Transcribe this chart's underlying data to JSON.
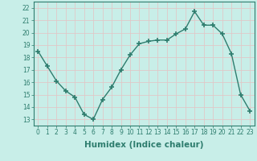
{
  "x": [
    0,
    1,
    2,
    3,
    4,
    5,
    6,
    7,
    8,
    9,
    10,
    11,
    12,
    13,
    14,
    15,
    16,
    17,
    18,
    19,
    20,
    21,
    22,
    23
  ],
  "y": [
    18.5,
    17.3,
    16.1,
    15.3,
    14.8,
    13.4,
    13.0,
    14.6,
    15.6,
    17.0,
    18.2,
    19.1,
    19.3,
    19.4,
    19.4,
    19.9,
    20.3,
    21.7,
    20.6,
    20.6,
    19.9,
    18.3,
    15.0,
    13.7
  ],
  "line_color": "#2e7d6e",
  "marker": "+",
  "marker_size": 4,
  "bg_color": "#c8eee8",
  "grid_color": "#e0c8c8",
  "xlabel": "Humidex (Indice chaleur)",
  "xlim": [
    -0.5,
    23.5
  ],
  "ylim": [
    12.5,
    22.5
  ],
  "yticks": [
    13,
    14,
    15,
    16,
    17,
    18,
    19,
    20,
    21,
    22
  ],
  "xticks": [
    0,
    1,
    2,
    3,
    4,
    5,
    6,
    7,
    8,
    9,
    10,
    11,
    12,
    13,
    14,
    15,
    16,
    17,
    18,
    19,
    20,
    21,
    22,
    23
  ],
  "tick_fontsize": 5.5,
  "xlabel_fontsize": 7.5,
  "line_width": 1.0
}
